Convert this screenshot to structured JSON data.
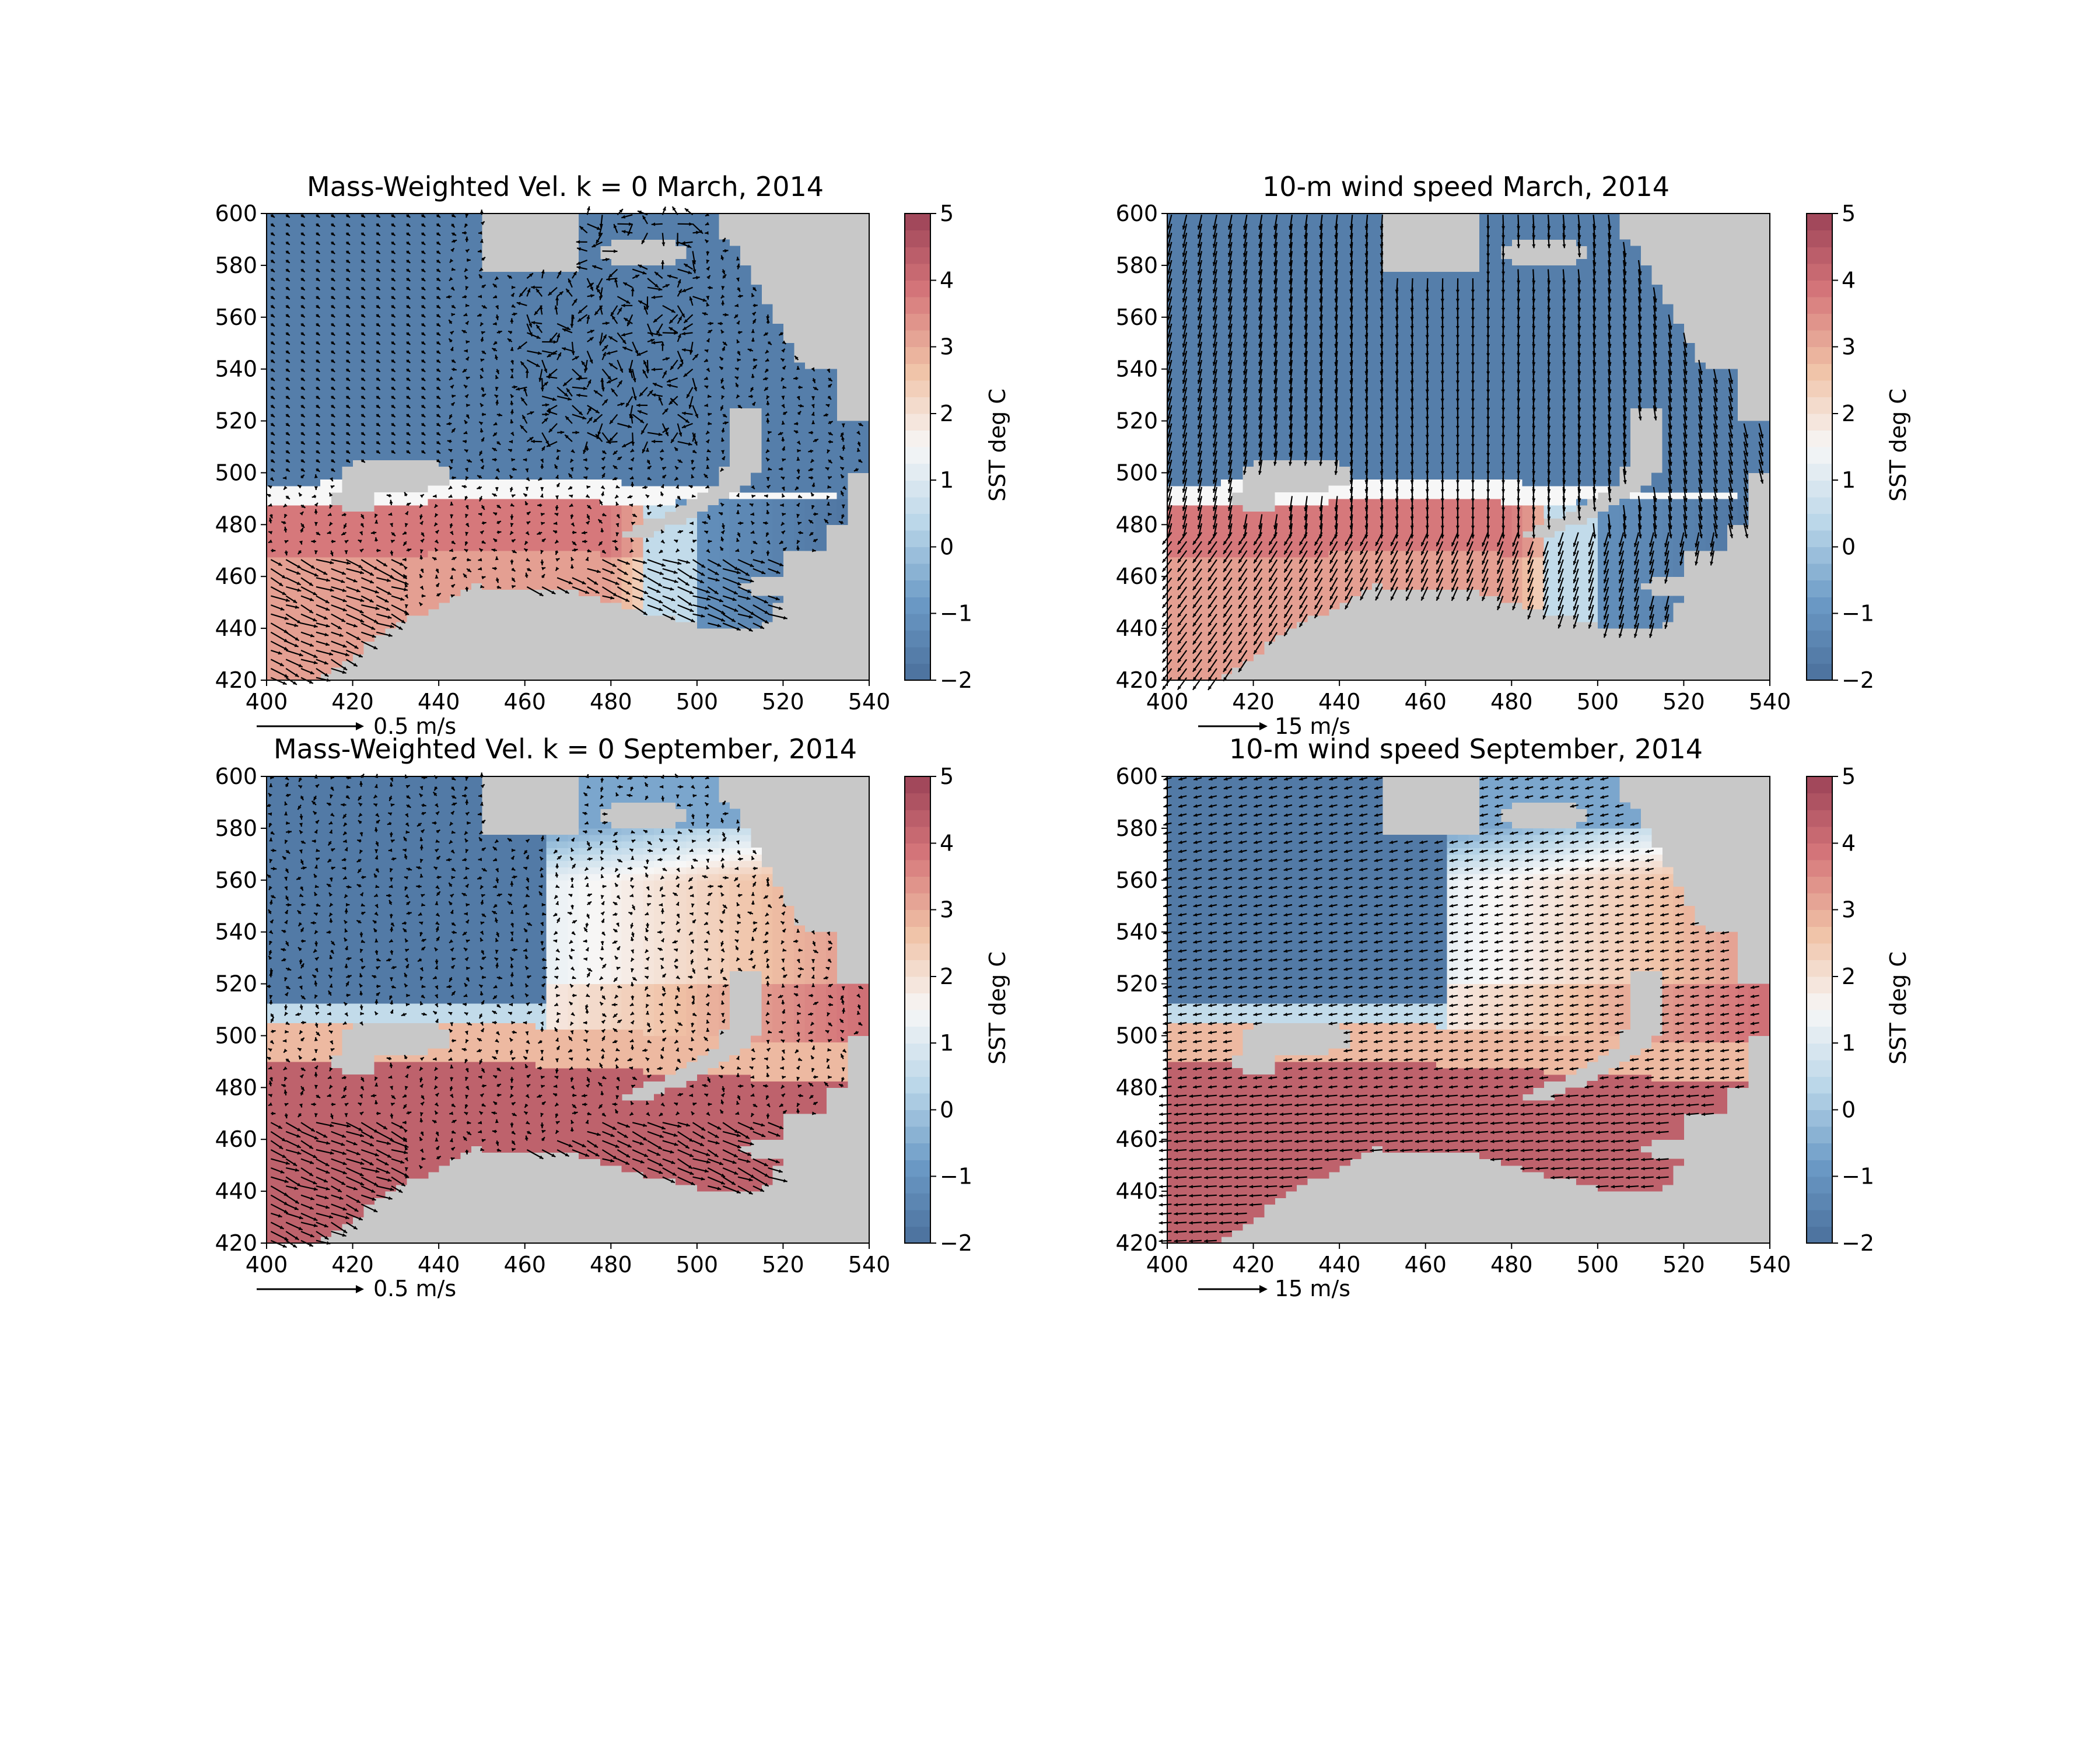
{
  "figure": {
    "colorbar_label": "SST deg C",
    "colorbar_ticks": [
      5,
      4,
      3,
      2,
      1,
      0,
      -1,
      -2
    ],
    "colorbar_range": [
      -2,
      5
    ],
    "colormap": [
      "#4a6f9b",
      "#6b9ac6",
      "#b9d6e8",
      "#f7f7f7",
      "#f0c2a6",
      "#d5767a",
      "#9c4357"
    ],
    "land_color": "#c8c8c8"
  },
  "chart_data": [
    {
      "type": "heatmap",
      "title": "Mass-Weighted Vel. k = 0 March, 2014",
      "xlabel": "",
      "ylabel": "",
      "xlim": [
        400,
        540
      ],
      "ylim": [
        420,
        600
      ],
      "xticks": [
        400,
        420,
        440,
        460,
        480,
        500,
        520,
        540
      ],
      "yticks": [
        420,
        440,
        460,
        480,
        500,
        520,
        540,
        560,
        580,
        600
      ],
      "quiver_key": "0.5 m/s",
      "month": "march",
      "vector_field": "ocean",
      "colorbar_label": "SST deg C"
    },
    {
      "type": "heatmap",
      "title": "10-m wind speed March, 2014",
      "xlabel": "",
      "ylabel": "",
      "xlim": [
        400,
        540
      ],
      "ylim": [
        420,
        600
      ],
      "xticks": [
        400,
        420,
        440,
        460,
        480,
        500,
        520,
        540
      ],
      "yticks": [
        420,
        440,
        460,
        480,
        500,
        520,
        540,
        560,
        580,
        600
      ],
      "quiver_key": "15 m/s",
      "month": "march",
      "vector_field": "wind",
      "colorbar_label": "SST deg C"
    },
    {
      "type": "heatmap",
      "title": "Mass-Weighted Vel. k = 0 September, 2014",
      "xlabel": "",
      "ylabel": "",
      "xlim": [
        400,
        540
      ],
      "ylim": [
        420,
        600
      ],
      "xticks": [
        400,
        420,
        440,
        460,
        480,
        500,
        520,
        540
      ],
      "yticks": [
        420,
        440,
        460,
        480,
        500,
        520,
        540,
        560,
        580,
        600
      ],
      "quiver_key": "0.5 m/s",
      "month": "september",
      "vector_field": "ocean",
      "colorbar_label": "SST deg C"
    },
    {
      "type": "heatmap",
      "title": "10-m wind speed September, 2014",
      "xlabel": "",
      "ylabel": "",
      "xlim": [
        400,
        540
      ],
      "ylim": [
        420,
        600
      ],
      "xticks": [
        400,
        420,
        440,
        460,
        480,
        500,
        520,
        540
      ],
      "yticks": [
        420,
        440,
        460,
        480,
        500,
        520,
        540,
        560,
        580,
        600
      ],
      "quiver_key": "15 m/s",
      "month": "september",
      "vector_field": "wind",
      "colorbar_label": "SST deg C"
    }
  ]
}
